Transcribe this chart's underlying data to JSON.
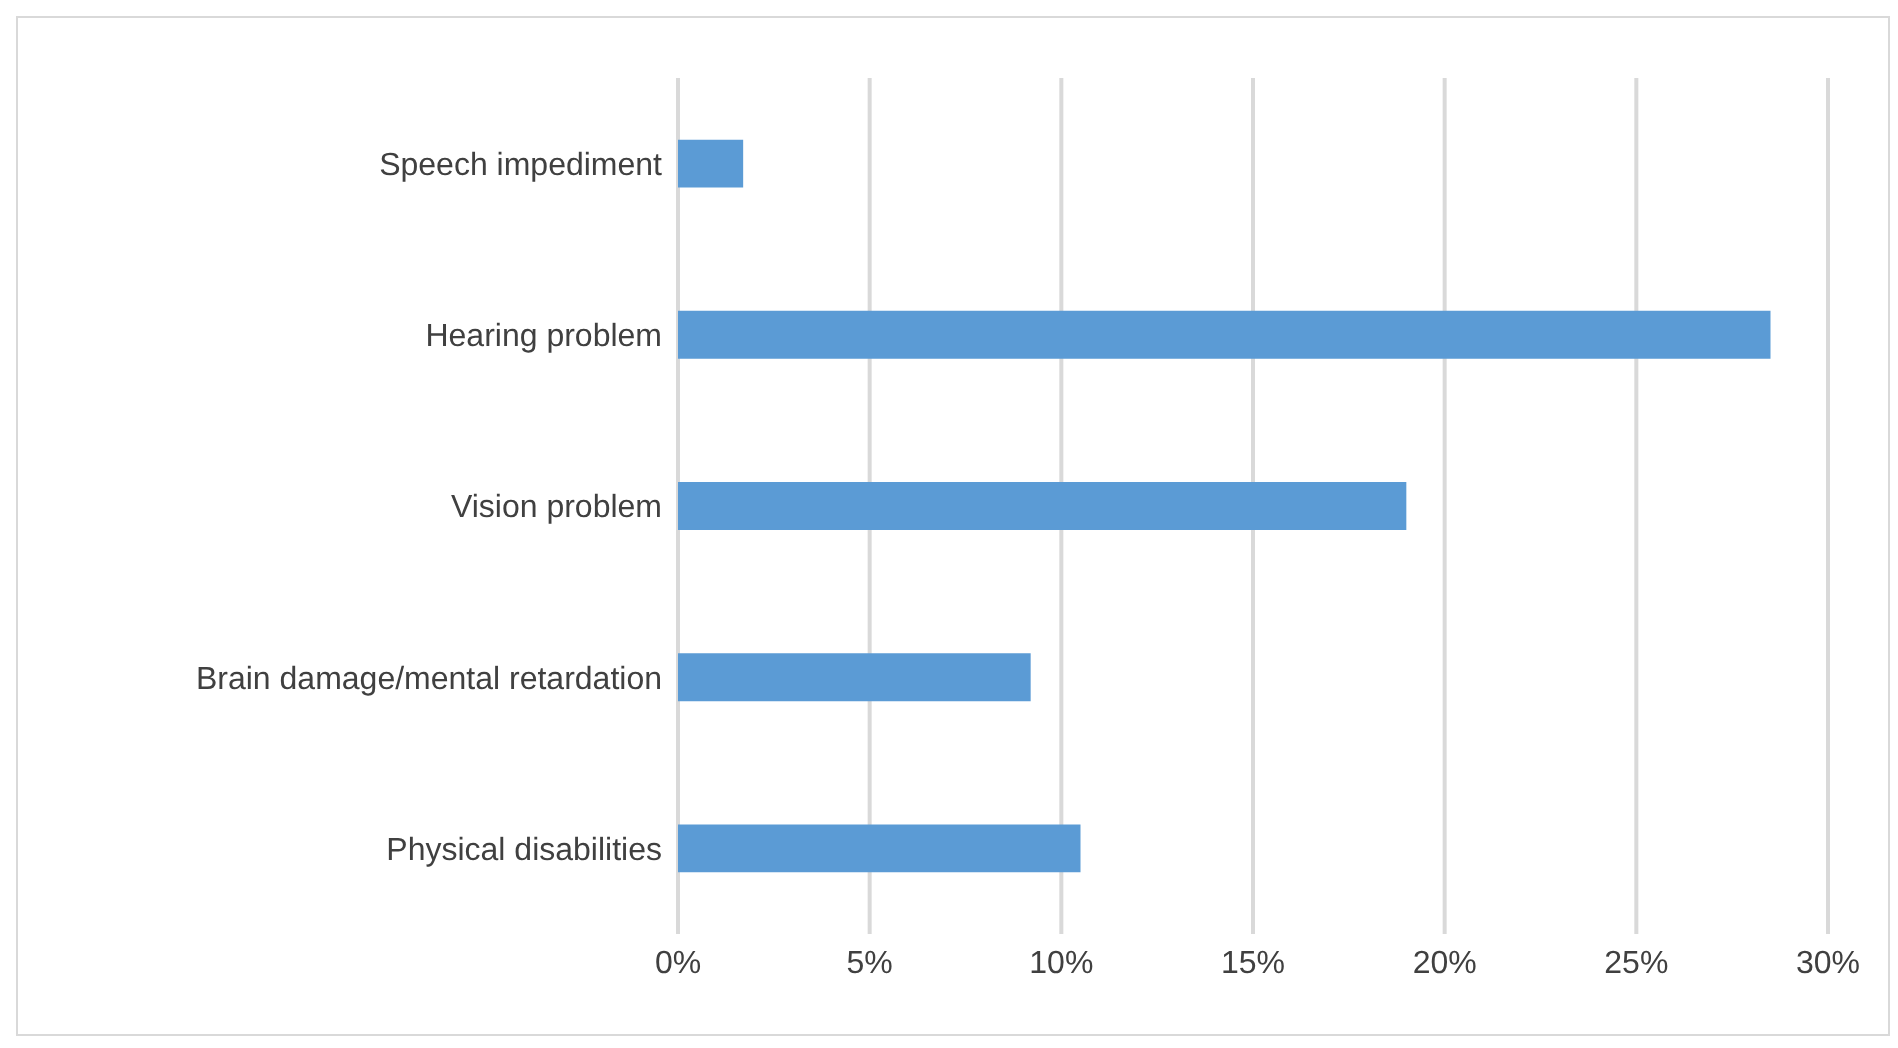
{
  "chart_data": {
    "type": "bar",
    "orientation": "horizontal",
    "categories": [
      "Speech impediment",
      "Hearing problem",
      "Vision problem",
      "Brain damage/mental retardation",
      "Physical disabilities"
    ],
    "values": [
      1.7,
      28.5,
      19.0,
      9.2,
      10.5
    ],
    "color": "#5b9bd5",
    "xlim": [
      0,
      30
    ],
    "xticks": [
      {
        "value": 0,
        "label": "0%"
      },
      {
        "value": 5,
        "label": "5%"
      },
      {
        "value": 10,
        "label": "10%"
      },
      {
        "value": 15,
        "label": "15%"
      },
      {
        "value": 20,
        "label": "20%"
      },
      {
        "value": 25,
        "label": "25%"
      },
      {
        "value": 30,
        "label": "30%"
      }
    ],
    "grid": "x",
    "legend": false
  }
}
